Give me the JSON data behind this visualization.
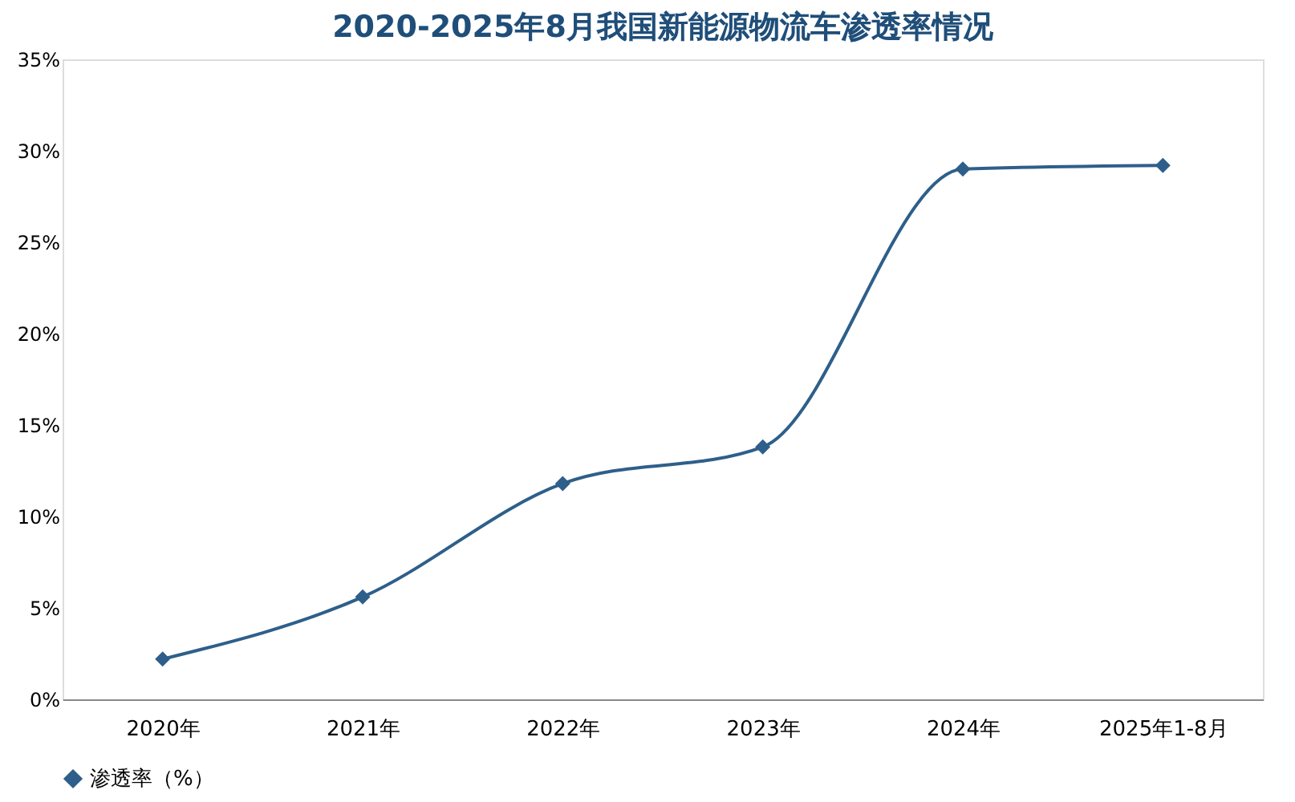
{
  "chart_data": {
    "type": "line",
    "title": "2020-2025年8月我国新能源物流车渗透率情况",
    "categories": [
      "2020年",
      "2021年",
      "2022年",
      "2023年",
      "2024年",
      "2025年1-8月"
    ],
    "series": [
      {
        "name": "渗透率（%）",
        "color": "#2e5f8a",
        "values": [
          2.2,
          5.6,
          11.8,
          13.8,
          29.0,
          29.2
        ]
      }
    ],
    "ylim": [
      0,
      35
    ],
    "yticks": [
      {
        "value": 0,
        "label": "0%"
      },
      {
        "value": 5,
        "label": "5%"
      },
      {
        "value": 10,
        "label": "10%"
      },
      {
        "value": 15,
        "label": "15%"
      },
      {
        "value": 20,
        "label": "20%"
      },
      {
        "value": 25,
        "label": "25%"
      },
      {
        "value": 30,
        "label": "30%"
      },
      {
        "value": 35,
        "label": "35%"
      }
    ],
    "marker": "diamond",
    "line_style": "solid",
    "legend": "bottom",
    "grid": false
  }
}
